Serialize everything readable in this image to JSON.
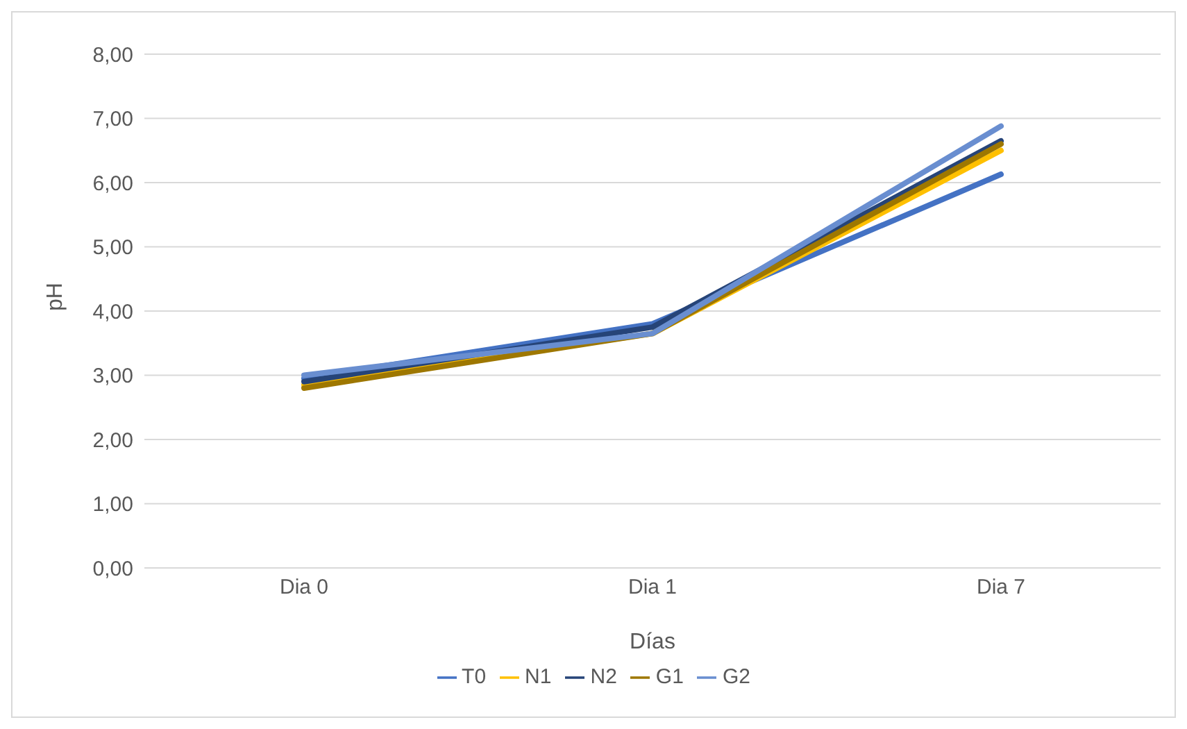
{
  "chart_data": {
    "type": "line",
    "xlabel": "Días",
    "ylabel": "pH",
    "categories": [
      "Dia 0",
      "Dia 1",
      "Dia 7"
    ],
    "series": [
      {
        "name": "T0",
        "color": "#4472c4",
        "values": [
          2.95,
          3.8,
          6.13
        ]
      },
      {
        "name": "N1",
        "color": "#ffc000",
        "values": [
          2.85,
          3.65,
          6.5
        ]
      },
      {
        "name": "N2",
        "color": "#264478",
        "values": [
          2.9,
          3.75,
          6.65
        ]
      },
      {
        "name": "G1",
        "color": "#9e7700",
        "values": [
          2.8,
          3.65,
          6.6
        ]
      },
      {
        "name": "G2",
        "color": "#698ed0",
        "values": [
          3.0,
          3.65,
          6.88
        ]
      }
    ],
    "ylim": [
      0,
      8
    ],
    "yticks": [
      {
        "value": 0,
        "label": "0,00"
      },
      {
        "value": 1,
        "label": "1,00"
      },
      {
        "value": 2,
        "label": "2,00"
      },
      {
        "value": 3,
        "label": "3,00"
      },
      {
        "value": 4,
        "label": "4,00"
      },
      {
        "value": 5,
        "label": "5,00"
      },
      {
        "value": 6,
        "label": "6,00"
      },
      {
        "value": 7,
        "label": "7,00"
      },
      {
        "value": 8,
        "label": "8,00"
      }
    ],
    "grid": "y",
    "legend": "bottom",
    "marker": "none",
    "line_style": "solid"
  }
}
